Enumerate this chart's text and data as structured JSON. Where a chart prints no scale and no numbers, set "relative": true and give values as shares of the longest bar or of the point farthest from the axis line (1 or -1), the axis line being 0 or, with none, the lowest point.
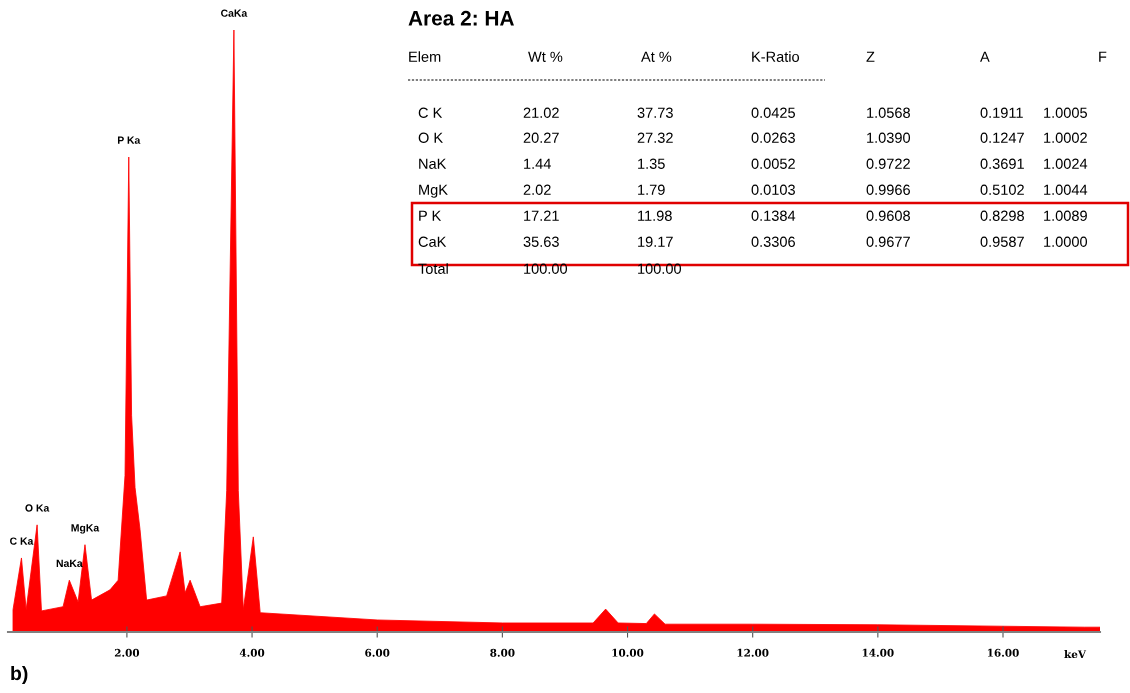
{
  "chart_data": {
    "type": "area",
    "relative": true,
    "title": "Area 2: HA",
    "xlabel": "keV",
    "x": [
      0.18,
      0.315,
      0.39,
      0.565,
      0.635,
      0.98,
      1.08,
      1.22,
      1.33,
      1.435,
      1.73,
      1.86,
      1.97,
      2.03,
      2.075,
      2.13,
      2.21,
      2.315,
      2.635,
      2.85,
      2.93,
      3.01,
      3.17,
      3.515,
      3.595,
      3.71,
      3.78,
      3.86,
      4.02,
      4.13,
      6.0,
      8.0,
      9.45,
      9.65,
      9.85,
      10.3,
      10.43,
      10.6,
      12.0,
      14.0,
      17.3,
      17.55
    ],
    "series": [
      {
        "color": "#ff0000",
        "values": [
          0.037,
          0.123,
          0.037,
          0.178,
          0.035,
          0.042,
          0.086,
          0.05,
          0.145,
          0.053,
          0.07,
          0.086,
          0.26,
          0.789,
          0.36,
          0.24,
          0.17,
          0.053,
          0.06,
          0.133,
          0.065,
          0.086,
          0.042,
          0.048,
          0.235,
          1.0,
          0.235,
          0.037,
          0.158,
          0.032,
          0.02,
          0.015,
          0.015,
          0.038,
          0.015,
          0.014,
          0.03,
          0.013,
          0.013,
          0.012,
          0.008,
          0.008
        ]
      }
    ],
    "xlim": [
      0.1,
      17.55
    ],
    "xticks": [
      {
        "value": 2,
        "label": "2.00"
      },
      {
        "value": 4,
        "label": "4.00"
      },
      {
        "value": 6,
        "label": "6.00"
      },
      {
        "value": 8,
        "label": "8.00"
      },
      {
        "value": 10,
        "label": "10.00"
      },
      {
        "value": 12,
        "label": "12.00"
      },
      {
        "value": 14,
        "label": "14.00"
      },
      {
        "value": 16,
        "label": "16.00"
      }
    ],
    "grid": false,
    "annotations": [
      {
        "text": "C Ka",
        "x": 0.315,
        "y": 0.123
      },
      {
        "text": "O Ka",
        "x": 0.565,
        "y": 0.178
      },
      {
        "text": "NaKa",
        "x": 1.08,
        "y": 0.086
      },
      {
        "text": "MgKa",
        "x": 1.33,
        "y": 0.145
      },
      {
        "text": "P Ka",
        "x": 2.03,
        "y": 0.789
      },
      {
        "text": "CaKa",
        "x": 3.71,
        "y": 1.0
      },
      "Elem",
      "Wt %",
      "At %",
      "K-Ratio",
      "Z",
      "A",
      "F",
      "C K",
      "21.02",
      "37.73",
      "0.0425",
      "1.0568",
      "0.1911",
      "1.0005",
      "O K",
      "20.27",
      "27.32",
      "0.0263",
      "1.0390",
      "0.1247",
      "1.0002",
      "NaK",
      "1.44",
      "1.35",
      "0.0052",
      "0.9722",
      "0.3691",
      "1.0024",
      "MgK",
      "2.02",
      "1.79",
      "0.0103",
      "0.9966",
      "0.5102",
      "1.0044",
      "P K",
      "17.21",
      "11.98",
      "0.1384",
      "0.9608",
      "0.8298",
      "1.0089",
      "CaK",
      "35.63",
      "19.17",
      "0.3306",
      "0.9677",
      "0.9587",
      "1.0000",
      "Total",
      "100.00",
      "100.00",
      "b)"
    ]
  }
}
